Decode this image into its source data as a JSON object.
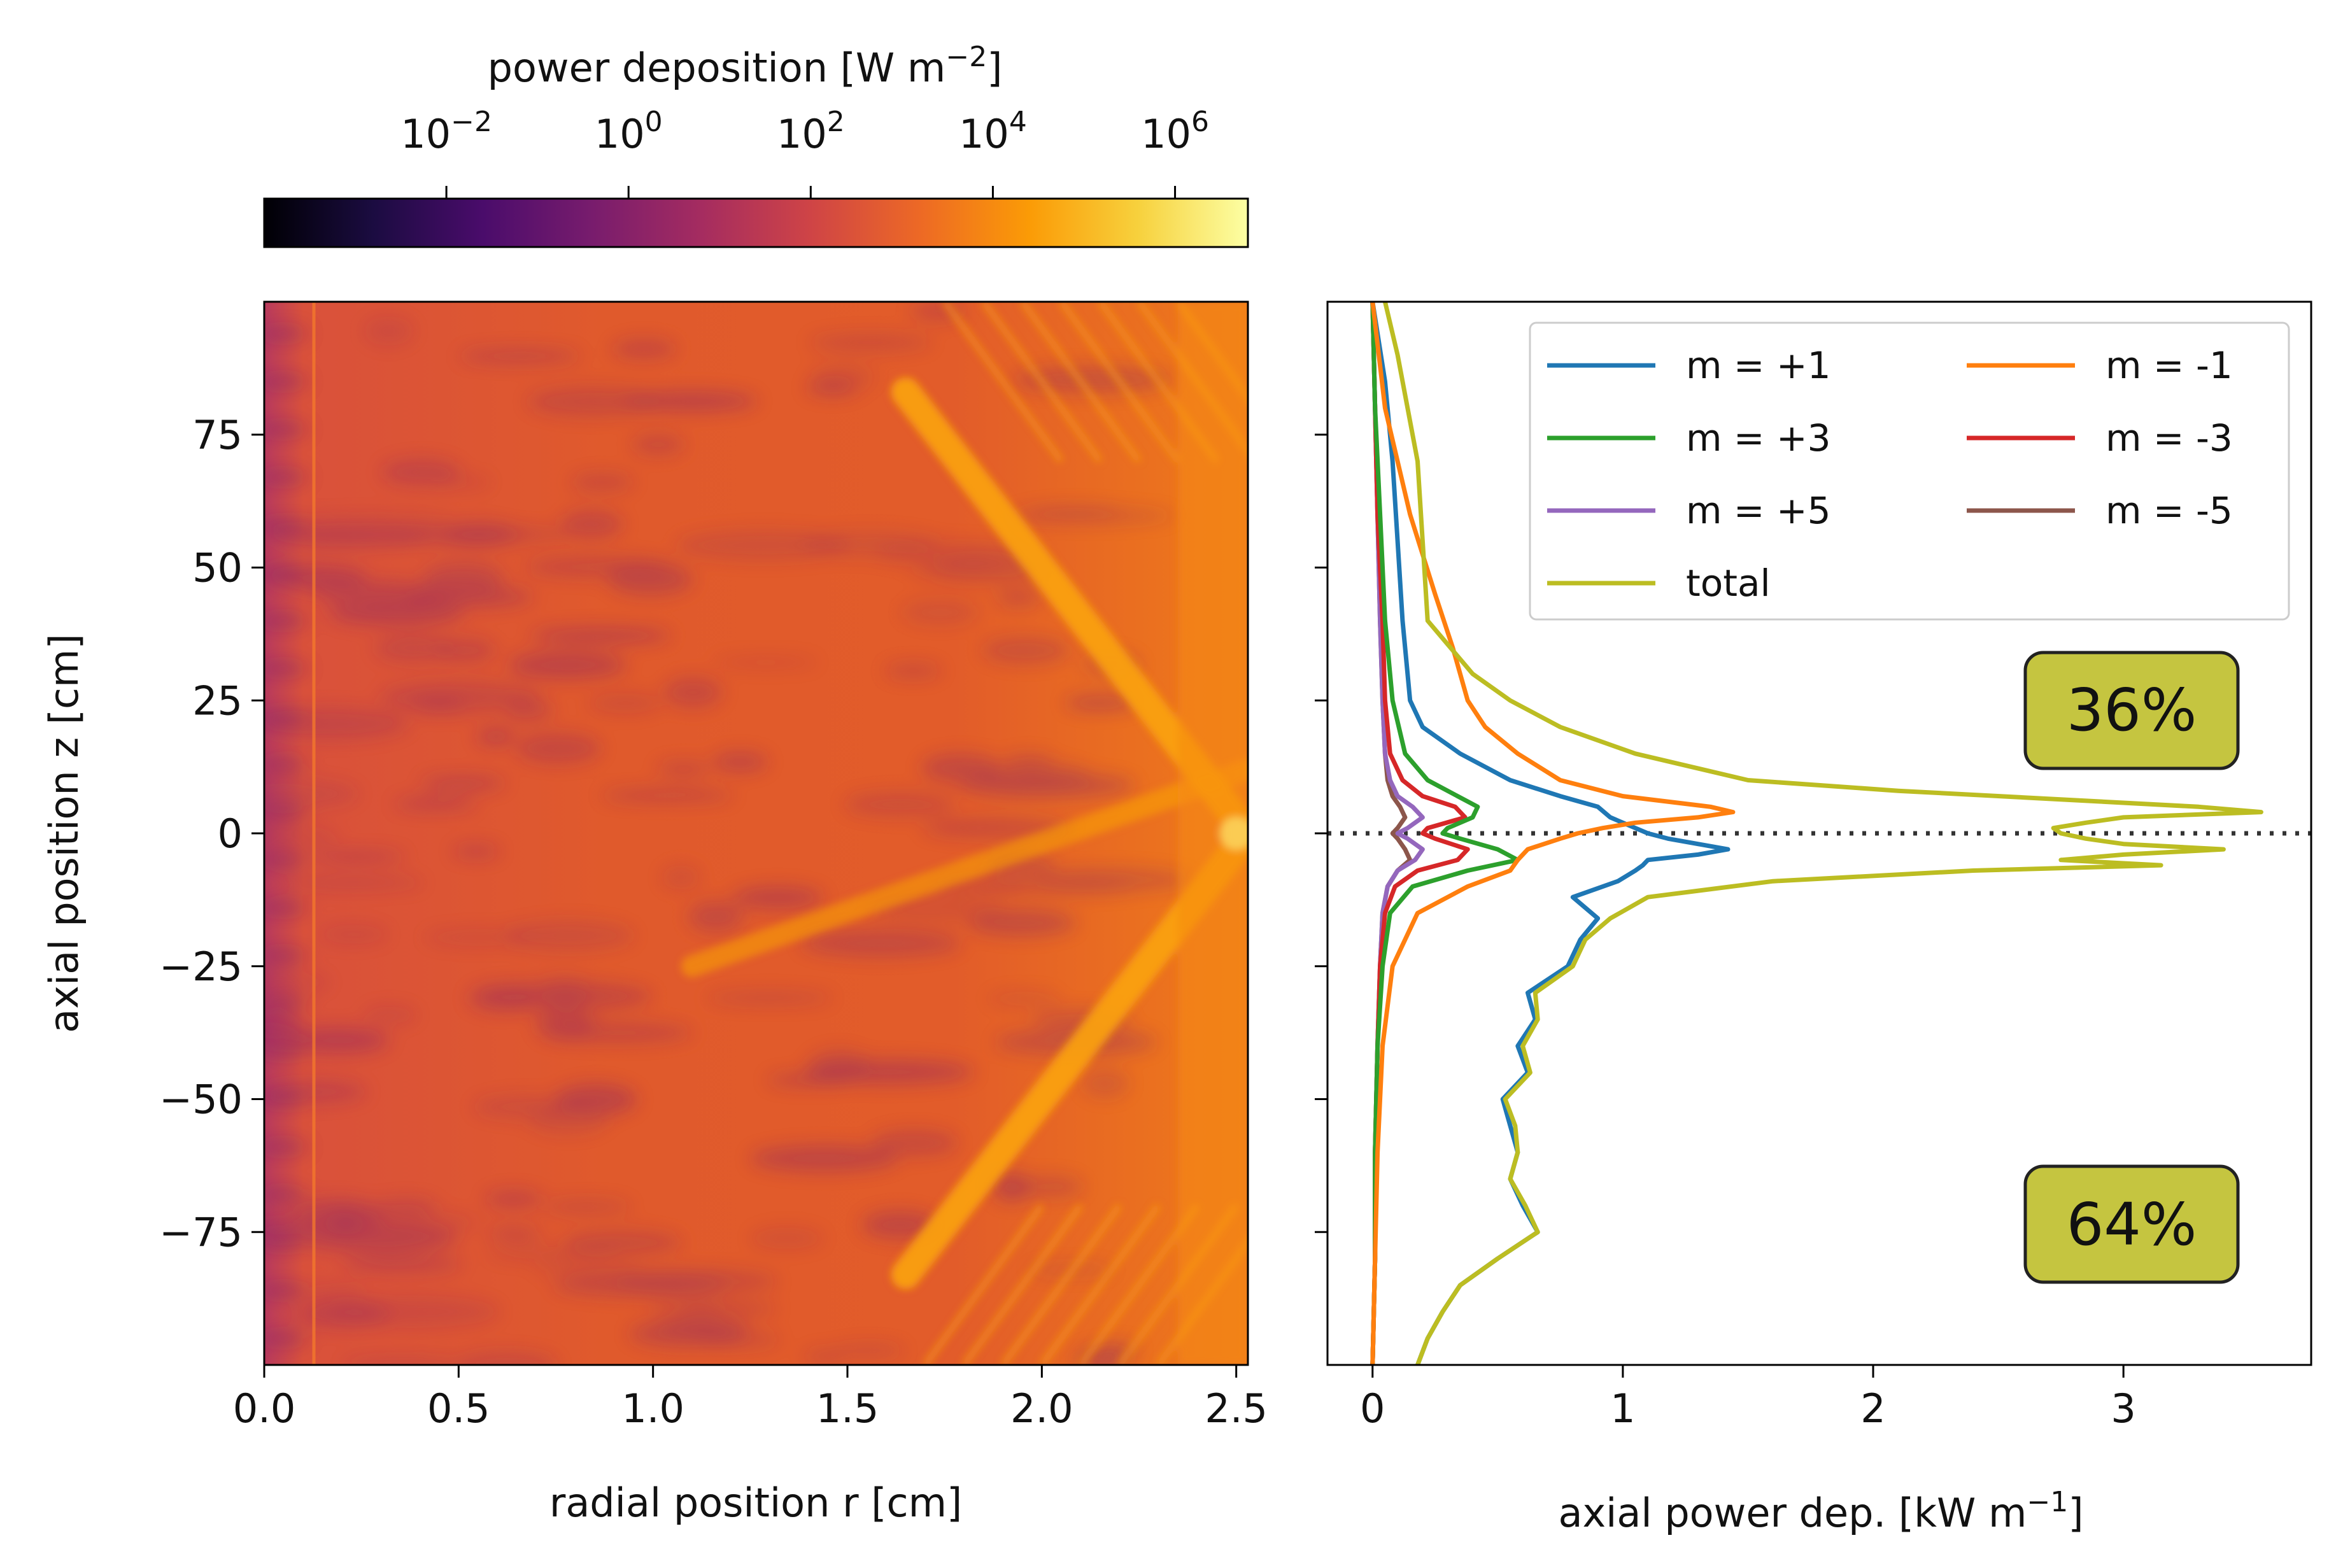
{
  "colors": {
    "m_plus_1": "#1f77b4",
    "m_minus_1": "#ff7f0e",
    "m_plus_3": "#2ca02c",
    "m_minus_3": "#d62728",
    "m_plus_5": "#9467bd",
    "m_minus_5": "#8c564b",
    "total": "#bcbd22",
    "badge_fill": "#c5c540",
    "dotted_line": "#333333",
    "heatmap_base": "#e45a2a",
    "heatmap_bright": "#fba40a",
    "heatmap_dark": "#8a2469"
  },
  "colorbar": {
    "label_main": "power deposition [W m",
    "label_exp": "−2",
    "label_close": "]",
    "tick_base": "10",
    "tick_exponents": [
      "−2",
      "0",
      "2",
      "4",
      "6"
    ],
    "tick_log_values": [
      -2,
      0,
      2,
      4,
      6
    ],
    "log_range": [
      -4.0,
      6.8
    ],
    "gradient": [
      "#000004",
      "#1b0c41",
      "#4a0c6b",
      "#781c6d",
      "#a52c60",
      "#cf4446",
      "#ed6925",
      "#fb9b06",
      "#f7d13d",
      "#fcffa4"
    ]
  },
  "chart_data": [
    {
      "type": "heatmap",
      "xlabel": "radial position r [cm]",
      "ylabel": "axial position z [cm]",
      "xlim": [
        0,
        2.53
      ],
      "ylim": [
        -100,
        100
      ],
      "xticks": [
        0.0,
        0.5,
        1.0,
        1.5,
        2.0,
        2.5
      ],
      "xtick_labels": [
        "0.0",
        "0.5",
        "1.0",
        "1.5",
        "2.0",
        "2.5"
      ],
      "yticks": [
        75,
        50,
        25,
        0,
        -25,
        -50,
        -75
      ],
      "ytick_labels": [
        "75",
        "50",
        "25",
        "0",
        "−25",
        "−50",
        "−75"
      ],
      "bright_ridges": [
        {
          "r": [
            1.65,
            2.53
          ],
          "z": [
            83,
            0
          ]
        },
        {
          "r": [
            2.53,
            1.65
          ],
          "z": [
            0,
            -83
          ]
        },
        {
          "r": [
            1.1,
            2.53
          ],
          "z": [
            -25,
            12
          ]
        }
      ]
    },
    {
      "type": "line",
      "xlabel_main": "axial power dep. [kW m",
      "xlabel_exp": "−1",
      "xlabel_close": "]",
      "xlim": [
        -0.18,
        3.75
      ],
      "ylim": [
        -100,
        100
      ],
      "xticks": [
        0,
        1,
        2,
        3
      ],
      "xtick_labels": [
        "0",
        "1",
        "2",
        "3"
      ],
      "yticks": [
        75,
        50,
        25,
        0,
        -25,
        -50,
        -75
      ],
      "hline_z": 0,
      "legend": {
        "placement": "top-right",
        "columns": [
          [
            "m_plus_1",
            "m_plus_3",
            "m_plus_5",
            "total"
          ],
          [
            "m_minus_1",
            "m_minus_3",
            "m_minus_5"
          ]
        ]
      },
      "annotations": [
        {
          "text": "36%",
          "x": 3.0,
          "z": 23
        },
        {
          "text": "64%",
          "x": 3.0,
          "z": -72
        }
      ],
      "series": [
        {
          "key": "m_minus_5",
          "name": "m = -5",
          "z": [
            100,
            80,
            60,
            40,
            25,
            15,
            10,
            7,
            5,
            3,
            1,
            0,
            -1,
            -3,
            -5,
            -7,
            -10,
            -15,
            -25,
            -40,
            -60,
            -80,
            -100
          ],
          "values": [
            0,
            0.01,
            0.02,
            0.03,
            0.04,
            0.05,
            0.06,
            0.08,
            0.11,
            0.13,
            0.1,
            0.08,
            0.1,
            0.13,
            0.15,
            0.1,
            0.06,
            0.04,
            0.03,
            0.02,
            0.01,
            0.01,
            0
          ]
        },
        {
          "key": "m_plus_5",
          "name": "m = +5",
          "z": [
            100,
            80,
            60,
            40,
            25,
            15,
            10,
            7,
            5,
            3,
            1,
            0,
            -1,
            -3,
            -5,
            -7,
            -10,
            -15,
            -25,
            -40,
            -60,
            -80,
            -100
          ],
          "values": [
            0,
            0.01,
            0.02,
            0.03,
            0.04,
            0.05,
            0.07,
            0.1,
            0.16,
            0.2,
            0.14,
            0.1,
            0.14,
            0.2,
            0.17,
            0.1,
            0.06,
            0.04,
            0.03,
            0.02,
            0.01,
            0.01,
            0
          ]
        },
        {
          "key": "m_minus_3",
          "name": "m = -3",
          "z": [
            100,
            80,
            60,
            40,
            25,
            15,
            10,
            7,
            5,
            3,
            1,
            0,
            -1,
            -3,
            -5,
            -7,
            -10,
            -15,
            -25,
            -40,
            -60,
            -80,
            -100
          ],
          "values": [
            0,
            0.01,
            0.02,
            0.04,
            0.05,
            0.07,
            0.12,
            0.2,
            0.33,
            0.37,
            0.22,
            0.2,
            0.25,
            0.38,
            0.34,
            0.18,
            0.09,
            0.05,
            0.03,
            0.02,
            0.01,
            0.01,
            0
          ]
        },
        {
          "key": "m_plus_3",
          "name": "m = +3",
          "z": [
            100,
            80,
            60,
            40,
            25,
            15,
            10,
            7,
            5,
            3,
            1,
            0,
            -1,
            -3,
            -5,
            -7,
            -10,
            -15,
            -25,
            -40,
            -60,
            -80,
            -100
          ],
          "values": [
            0,
            0.01,
            0.03,
            0.05,
            0.08,
            0.13,
            0.22,
            0.34,
            0.42,
            0.4,
            0.3,
            0.28,
            0.35,
            0.5,
            0.58,
            0.38,
            0.16,
            0.07,
            0.04,
            0.02,
            0.01,
            0.01,
            0
          ]
        },
        {
          "key": "m_plus_1",
          "name": "m = +1",
          "z": [
            100,
            85,
            70,
            55,
            40,
            30,
            25,
            20,
            15,
            10,
            7,
            5,
            3,
            1,
            0,
            -1,
            -2,
            -3,
            -4,
            -5,
            -6,
            -7,
            -9,
            -12,
            -16,
            -20,
            -25,
            -30,
            -35,
            -40,
            -45,
            -50,
            -55,
            -60,
            -65,
            -70,
            -75,
            -80,
            -85,
            -90,
            -95,
            -100
          ],
          "values": [
            0,
            0.05,
            0.08,
            0.1,
            0.12,
            0.14,
            0.15,
            0.2,
            0.35,
            0.55,
            0.75,
            0.9,
            0.95,
            1.05,
            1.1,
            1.18,
            1.3,
            1.42,
            1.3,
            1.1,
            1.08,
            1.05,
            0.98,
            0.8,
            0.9,
            0.83,
            0.78,
            0.62,
            0.65,
            0.58,
            0.62,
            0.52,
            0.55,
            0.58,
            0.55,
            0.6,
            0.66,
            0.5,
            0.35,
            0.28,
            0.22,
            0.18
          ]
        },
        {
          "key": "m_minus_1",
          "name": "m = -1",
          "z": [
            100,
            80,
            60,
            45,
            35,
            25,
            20,
            15,
            10,
            7,
            5,
            4,
            3,
            2,
            1,
            0,
            -1,
            -3,
            -5,
            -7,
            -10,
            -15,
            -25,
            -40,
            -60,
            -80,
            -100
          ],
          "values": [
            0,
            0.05,
            0.15,
            0.25,
            0.32,
            0.38,
            0.45,
            0.58,
            0.75,
            1.0,
            1.35,
            1.44,
            1.3,
            1.05,
            0.92,
            0.82,
            0.75,
            0.62,
            0.58,
            0.55,
            0.38,
            0.18,
            0.08,
            0.04,
            0.02,
            0.01,
            0
          ]
        },
        {
          "key": "total",
          "name": "total",
          "z": [
            100,
            90,
            80,
            70,
            55,
            40,
            30,
            25,
            20,
            15,
            10,
            8,
            6,
            5,
            4,
            3,
            2,
            1,
            0,
            -1,
            -2,
            -3,
            -4,
            -5,
            -6,
            -7,
            -9,
            -12,
            -16,
            -20,
            -25,
            -30,
            -35,
            -40,
            -45,
            -50,
            -55,
            -60,
            -65,
            -70,
            -75,
            -80,
            -85,
            -90,
            -95,
            -100
          ],
          "values": [
            0.05,
            0.1,
            0.14,
            0.18,
            0.2,
            0.22,
            0.4,
            0.55,
            0.75,
            1.05,
            1.5,
            2.1,
            2.9,
            3.3,
            3.55,
            3.0,
            2.85,
            2.72,
            2.75,
            2.85,
            3.0,
            3.4,
            3.0,
            2.75,
            3.15,
            2.4,
            1.6,
            1.1,
            0.95,
            0.85,
            0.8,
            0.65,
            0.66,
            0.6,
            0.63,
            0.53,
            0.57,
            0.58,
            0.55,
            0.61,
            0.66,
            0.5,
            0.35,
            0.28,
            0.22,
            0.18
          ]
        }
      ]
    }
  ]
}
